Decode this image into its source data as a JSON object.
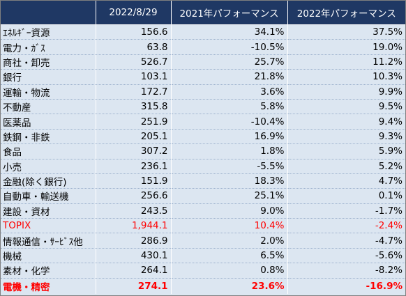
{
  "header": {
    "col0": "",
    "col1": "2022/8/29",
    "col2": "2021年パフォーマンス",
    "col3": "2022年パフォーマンス"
  },
  "colors": {
    "header_bg": "#1f3864",
    "row_bg": "#dce6f1",
    "highlight": "#ff0000"
  },
  "rows": [
    {
      "name": "ｴﾈﾙｷﾞｰ資源",
      "value": "156.6",
      "perf2021": "34.1%",
      "perf2022": "37.5%"
    },
    {
      "name": "電力・ｶﾞｽ",
      "value": "63.8",
      "perf2021": "-10.5%",
      "perf2022": "19.0%"
    },
    {
      "name": "商社・卸売",
      "value": "526.7",
      "perf2021": "25.7%",
      "perf2022": "11.2%"
    },
    {
      "name": "銀行",
      "value": "103.1",
      "perf2021": "21.8%",
      "perf2022": "10.3%"
    },
    {
      "name": "運輸・物流",
      "value": "172.7",
      "perf2021": "3.6%",
      "perf2022": "9.9%"
    },
    {
      "name": "不動産",
      "value": "315.8",
      "perf2021": "5.8%",
      "perf2022": "9.5%"
    },
    {
      "name": "医薬品",
      "value": "251.9",
      "perf2021": "-10.4%",
      "perf2022": "9.4%"
    },
    {
      "name": "鉄鋼・非鉄",
      "value": "205.1",
      "perf2021": "16.9%",
      "perf2022": "9.3%"
    },
    {
      "name": "食品",
      "value": "307.2",
      "perf2021": "1.8%",
      "perf2022": "5.9%"
    },
    {
      "name": "小売",
      "value": "236.1",
      "perf2021": "-5.5%",
      "perf2022": "5.2%"
    },
    {
      "name": "金融(除く銀行)",
      "value": "151.9",
      "perf2021": "18.3%",
      "perf2022": "4.7%"
    },
    {
      "name": "自動車・輸送機",
      "value": "256.6",
      "perf2021": "25.1%",
      "perf2022": "0.1%"
    },
    {
      "name": "建設・資材",
      "value": "243.5",
      "perf2021": "9.0%",
      "perf2022": "-1.7%"
    },
    {
      "name": "TOPIX",
      "value": "1,944.1",
      "perf2021": "10.4%",
      "perf2022": "-2.4%"
    },
    {
      "name": "情報通信・ｻｰﾋﾞｽ他",
      "value": "286.9",
      "perf2021": "2.0%",
      "perf2022": "-4.7%"
    },
    {
      "name": "機械",
      "value": "430.1",
      "perf2021": "6.5%",
      "perf2022": "-5.6%"
    },
    {
      "name": "素材・化学",
      "value": "264.1",
      "perf2021": "0.8%",
      "perf2022": "-8.2%"
    },
    {
      "name": "電機・精密",
      "value": "274.1",
      "perf2021": "23.6%",
      "perf2022": "-16.9%"
    }
  ]
}
